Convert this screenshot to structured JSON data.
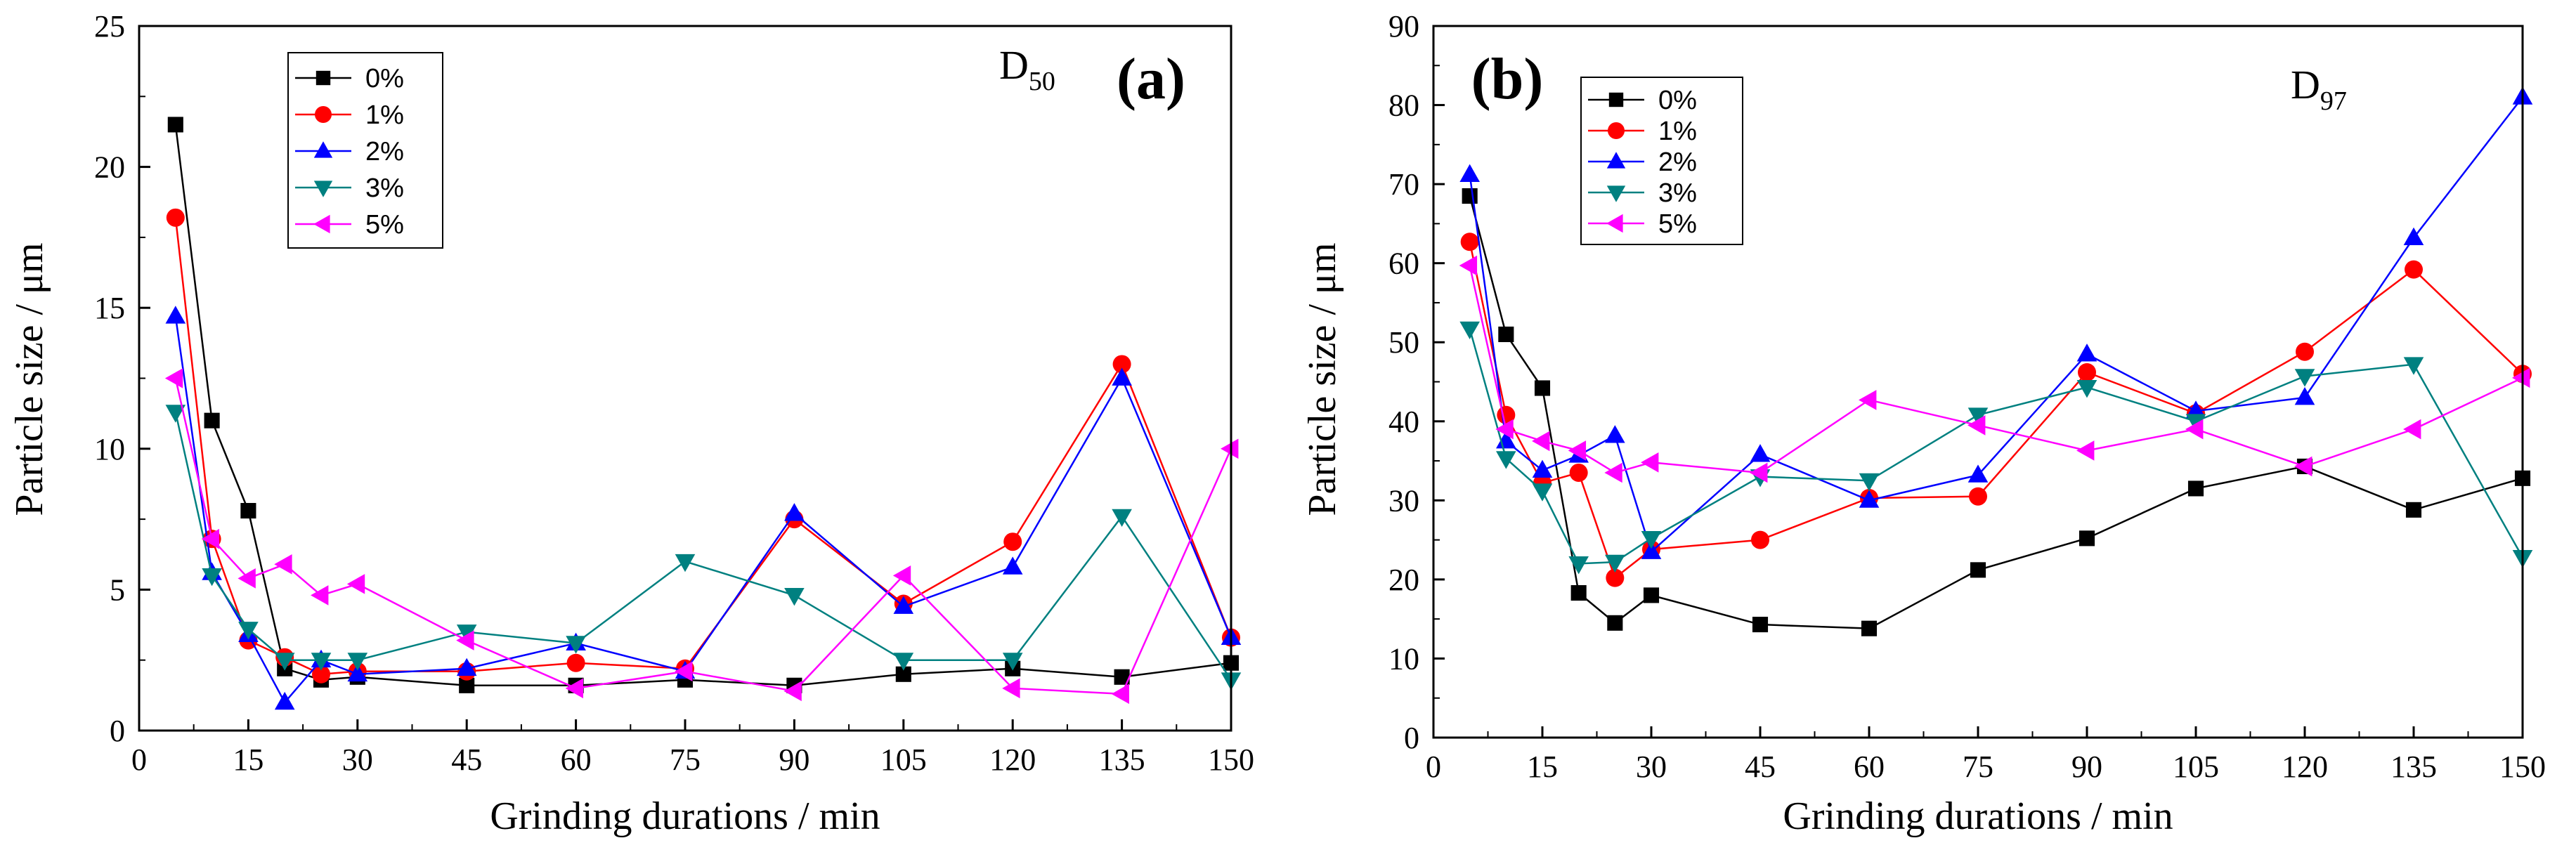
{
  "chart_data": [
    {
      "type": "line",
      "panel_label": "(a)",
      "subtitle_main": "D",
      "subtitle_sub": "50",
      "xlabel": "Grinding durations / min",
      "ylabel": "Particle size / μm",
      "xlim": [
        0,
        150
      ],
      "ylim": [
        0,
        25
      ],
      "xticks": [
        0,
        15,
        30,
        45,
        60,
        75,
        90,
        105,
        120,
        135,
        150
      ],
      "yticks": [
        0,
        5,
        10,
        15,
        20,
        25
      ],
      "x": [
        5,
        10,
        15,
        20,
        25,
        30,
        45,
        60,
        75,
        90,
        105,
        120,
        135,
        150
      ],
      "series": [
        {
          "name": "0%",
          "color": "#000000",
          "marker": "square",
          "values": [
            21.5,
            11.0,
            7.8,
            2.2,
            1.8,
            1.9,
            1.6,
            1.6,
            1.8,
            1.6,
            2.0,
            2.2,
            1.9,
            2.4
          ]
        },
        {
          "name": "1%",
          "color": "#ff0000",
          "marker": "circle",
          "values": [
            18.2,
            6.8,
            3.2,
            2.6,
            2.0,
            2.1,
            2.1,
            2.4,
            2.2,
            7.5,
            4.5,
            6.7,
            13.0,
            3.3
          ]
        },
        {
          "name": "2%",
          "color": "#0000ff",
          "marker": "triangle-up",
          "values": [
            14.7,
            5.6,
            3.4,
            1.0,
            2.5,
            2.0,
            2.2,
            3.1,
            2.1,
            7.7,
            4.4,
            5.8,
            12.5,
            3.3
          ]
        },
        {
          "name": "3%",
          "color": "#008080",
          "marker": "triangle-down",
          "values": [
            11.3,
            5.5,
            3.6,
            2.5,
            2.5,
            2.5,
            3.5,
            3.1,
            6.0,
            4.8,
            2.5,
            2.5,
            7.6,
            1.8
          ]
        },
        {
          "name": "5%",
          "color": "#ff00ff",
          "marker": "triangle-left",
          "values": [
            12.5,
            6.8,
            5.4,
            5.9,
            4.8,
            5.2,
            3.2,
            1.5,
            2.1,
            1.4,
            5.5,
            1.5,
            1.3,
            10.0
          ]
        }
      ],
      "legend": "top-left"
    },
    {
      "type": "line",
      "panel_label": "(b)",
      "subtitle_main": "D",
      "subtitle_sub": "97",
      "xlabel": "Grinding durations / min",
      "ylabel": "Particle size / μm",
      "xlim": [
        0,
        150
      ],
      "ylim": [
        0,
        90
      ],
      "xticks": [
        0,
        15,
        30,
        45,
        60,
        75,
        90,
        105,
        120,
        135,
        150
      ],
      "yticks": [
        0,
        10,
        20,
        30,
        40,
        50,
        60,
        70,
        80,
        90
      ],
      "x": [
        5,
        10,
        15,
        20,
        25,
        30,
        45,
        60,
        75,
        90,
        105,
        120,
        135,
        150
      ],
      "series": [
        {
          "name": "0%",
          "color": "#000000",
          "marker": "square",
          "values": [
            68.5,
            51.0,
            44.2,
            18.3,
            14.5,
            18.0,
            14.3,
            13.8,
            21.2,
            25.2,
            31.5,
            34.3,
            28.8,
            32.8
          ]
        },
        {
          "name": "1%",
          "color": "#ff0000",
          "marker": "circle",
          "values": [
            62.7,
            40.8,
            32.2,
            33.5,
            20.2,
            23.8,
            25.0,
            30.3,
            30.5,
            46.2,
            41.0,
            48.8,
            59.2,
            46.0
          ]
        },
        {
          "name": "2%",
          "color": "#0000ff",
          "marker": "triangle-up",
          "values": [
            71.2,
            37.5,
            33.8,
            35.7,
            38.2,
            23.5,
            35.8,
            30.0,
            33.2,
            48.5,
            41.3,
            43.0,
            63.2,
            81.0
          ]
        },
        {
          "name": "3%",
          "color": "#008080",
          "marker": "triangle-down",
          "values": [
            51.7,
            35.3,
            31.2,
            22.0,
            22.2,
            25.2,
            33.0,
            32.5,
            40.8,
            44.3,
            40.0,
            45.7,
            47.2,
            22.8
          ]
        },
        {
          "name": "5%",
          "color": "#ff00ff",
          "marker": "triangle-left",
          "values": [
            59.7,
            39.0,
            37.5,
            36.3,
            33.5,
            34.8,
            33.5,
            42.7,
            39.5,
            36.3,
            39.0,
            34.3,
            39.0,
            45.5
          ]
        }
      ],
      "legend": "top-left"
    }
  ]
}
